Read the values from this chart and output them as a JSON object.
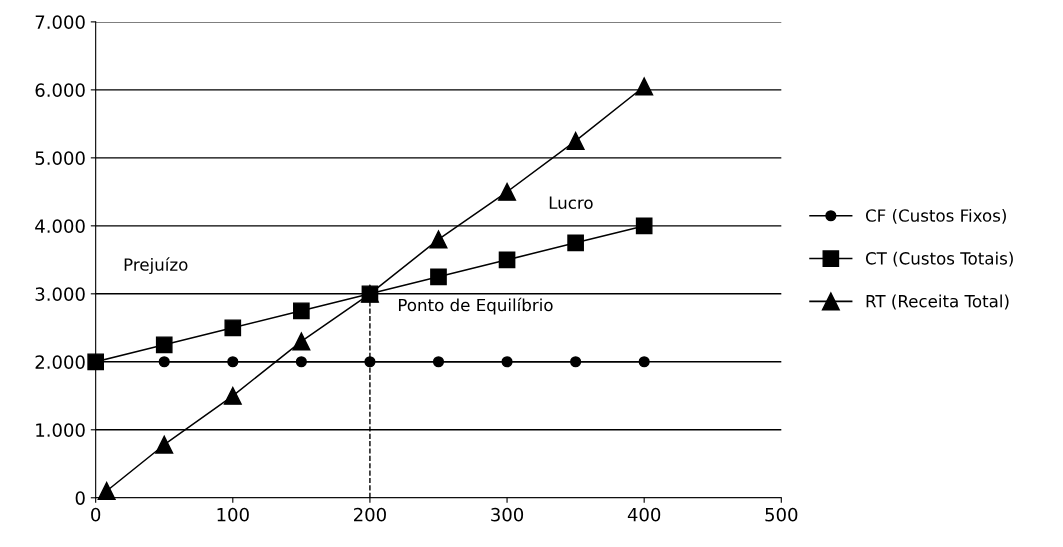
{
  "chart_data": {
    "type": "line",
    "xlim": [
      0,
      500
    ],
    "xticks": [
      0,
      100,
      200,
      300,
      400,
      500
    ],
    "ylim": [
      0,
      7000
    ],
    "yticks": [
      0,
      {
        "value": 1000,
        "label": "1.000"
      },
      {
        "value": 2000,
        "label": "2.000"
      },
      {
        "value": 3000,
        "label": "3.000"
      },
      {
        "value": 4000,
        "label": "4.000"
      },
      {
        "value": 5000,
        "label": "5.000"
      },
      {
        "value": 6000,
        "label": "6.000"
      },
      {
        "value": 7000,
        "label": "7.000"
      }
    ],
    "grid": "y",
    "legend": "right",
    "series": [
      {
        "name": "CF (Custos Fixos)",
        "color": "#000000",
        "marker": "circle",
        "x": [
          50,
          100,
          150,
          200,
          250,
          300,
          350,
          400
        ],
        "values": [
          2000,
          2000,
          2000,
          2000,
          2000,
          2000,
          2000,
          2000
        ]
      },
      {
        "name": "CT (Custos Totais)",
        "color": "#000000",
        "marker": "square",
        "x": [
          0,
          50,
          100,
          150,
          200,
          250,
          300,
          350,
          400
        ],
        "values": [
          2000,
          2250,
          2500,
          2750,
          3000,
          3250,
          3500,
          3750,
          4000
        ]
      },
      {
        "name": "RT (Receita Total)",
        "color": "#000000",
        "marker": "triangle",
        "x": [
          8,
          50,
          100,
          150,
          200,
          250,
          300,
          350,
          400
        ],
        "values": [
          100,
          780,
          1500,
          2300,
          3000,
          3800,
          4500,
          5250,
          6050
        ]
      },
      {
        "color": "#000000",
        "marker": "none",
        "line_style": "dashed",
        "x": [
          200,
          200
        ],
        "values": [
          0,
          3000
        ]
      }
    ],
    "annotations": [
      "Prejuízo",
      "Lucro",
      "Ponto de Equilíbrio"
    ]
  }
}
